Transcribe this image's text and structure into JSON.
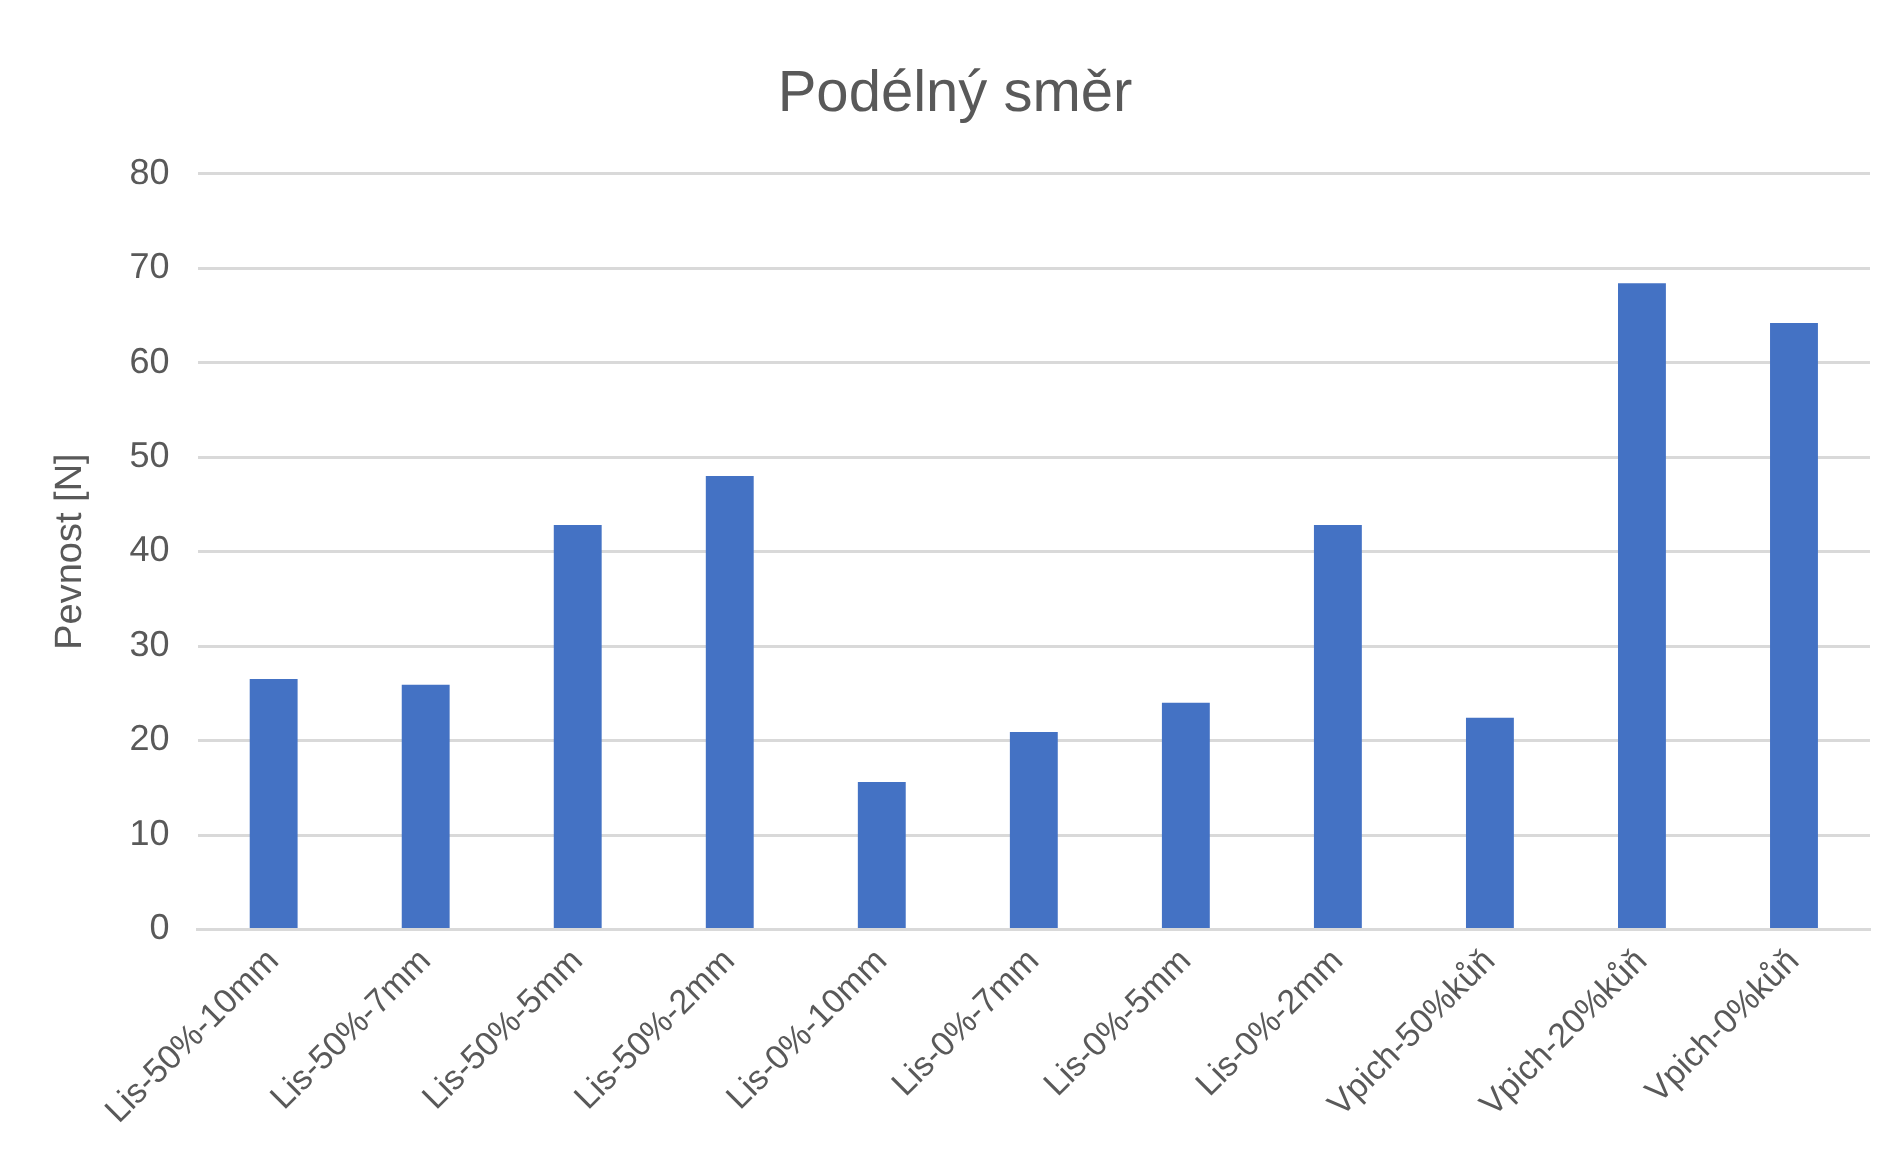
{
  "chart_data": {
    "type": "bar",
    "title": "Podélný směr",
    "ylabel": "Pevnost [N]",
    "categories": [
      "Lis-50%-10mm",
      "Lis-50%-7mm",
      "Lis-50%-5mm",
      "Lis-50%-2mm",
      "Lis-0%-10mm",
      "Lis-0%-7mm",
      "Lis-0%-5mm",
      "Lis-0%-2mm",
      "Vpich-50%kůň",
      "Vpich-20%kůň",
      "Vpich-0%kůň"
    ],
    "values": [
      26.5,
      25.9,
      42.8,
      48.0,
      15.6,
      20.9,
      24.0,
      42.8,
      22.4,
      68.4,
      64.2
    ],
    "color": "#4472c4",
    "ylim": [
      0,
      80
    ],
    "yticks": [
      0,
      10,
      20,
      30,
      40,
      50,
      60,
      70,
      80
    ],
    "grid": "y"
  }
}
